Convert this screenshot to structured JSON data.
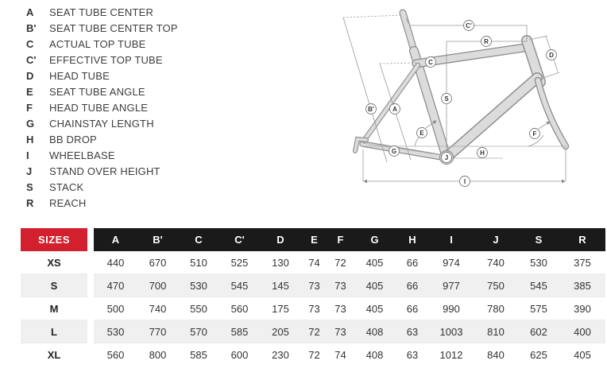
{
  "colors": {
    "accent_red": "#d2202f",
    "header_black": "#1a1a1a",
    "row_alt_gray": "#f0f0f0",
    "frame_fill": "#dcdcdc",
    "frame_outline": "#8f8f8f",
    "measure_line": "#999999",
    "text_dark": "#3e3e3e"
  },
  "legend": {
    "items": [
      {
        "key": "A",
        "label": "SEAT TUBE CENTER"
      },
      {
        "key": "B'",
        "label": "SEAT TUBE CENTER TOP"
      },
      {
        "key": "C",
        "label": "ACTUAL TOP TUBE"
      },
      {
        "key": "C'",
        "label": "EFFECTIVE TOP TUBE"
      },
      {
        "key": "D",
        "label": "HEAD TUBE"
      },
      {
        "key": "E",
        "label": "SEAT TUBE ANGLE"
      },
      {
        "key": "F",
        "label": "HEAD TUBE ANGLE"
      },
      {
        "key": "G",
        "label": "CHAINSTAY LENGTH"
      },
      {
        "key": "H",
        "label": "BB DROP"
      },
      {
        "key": "I",
        "label": "WHEELBASE"
      },
      {
        "key": "J",
        "label": "STAND OVER HEIGHT"
      },
      {
        "key": "S",
        "label": "STACK"
      },
      {
        "key": "R",
        "label": "REACH"
      }
    ]
  },
  "diagram": {
    "labels": [
      "C'",
      "R",
      "C",
      "D",
      "S",
      "B'",
      "A",
      "E",
      "G",
      "H",
      "J",
      "F",
      "I"
    ]
  },
  "table": {
    "header": {
      "sizes_label": "SIZES",
      "columns": [
        "A",
        "B'",
        "C",
        "C'",
        "D",
        "E",
        "F",
        "G",
        "H",
        "I",
        "J",
        "S",
        "R"
      ]
    },
    "rows": [
      {
        "size": "XS",
        "values": [
          440,
          670,
          510,
          525,
          130,
          74,
          72,
          405,
          66,
          974,
          740,
          530,
          375
        ]
      },
      {
        "size": "S",
        "values": [
          470,
          700,
          530,
          545,
          145,
          73,
          73,
          405,
          66,
          977,
          750,
          545,
          385
        ]
      },
      {
        "size": "M",
        "values": [
          500,
          740,
          550,
          560,
          175,
          73,
          73,
          405,
          66,
          990,
          780,
          575,
          390
        ]
      },
      {
        "size": "L",
        "values": [
          530,
          770,
          570,
          585,
          205,
          72,
          73,
          408,
          63,
          1003,
          810,
          602,
          400
        ]
      },
      {
        "size": "XL",
        "values": [
          560,
          800,
          585,
          600,
          230,
          72,
          74,
          408,
          63,
          1012,
          840,
          625,
          405
        ]
      }
    ]
  }
}
